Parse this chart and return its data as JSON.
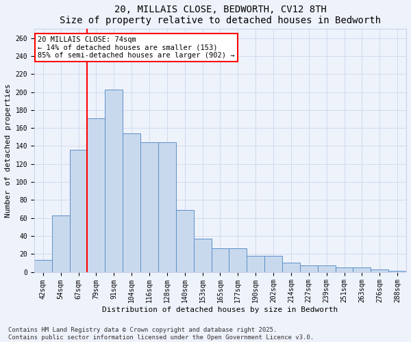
{
  "title": "20, MILLAIS CLOSE, BEDWORTH, CV12 8TH",
  "subtitle": "Size of property relative to detached houses in Bedworth",
  "xlabel": "Distribution of detached houses by size in Bedworth",
  "ylabel": "Number of detached properties",
  "categories": [
    "42sqm",
    "54sqm",
    "67sqm",
    "79sqm",
    "91sqm",
    "104sqm",
    "116sqm",
    "128sqm",
    "140sqm",
    "153sqm",
    "165sqm",
    "177sqm",
    "190sqm",
    "202sqm",
    "214sqm",
    "227sqm",
    "239sqm",
    "251sqm",
    "263sqm",
    "276sqm",
    "288sqm"
  ],
  "values": [
    13,
    63,
    136,
    171,
    203,
    154,
    144,
    144,
    69,
    37,
    26,
    26,
    18,
    18,
    10,
    7,
    7,
    5,
    5,
    3,
    1
  ],
  "bar_color": "#c9d9ed",
  "bar_edge_color": "#5b8fc9",
  "property_line_color": "red",
  "annotation_line1": "20 MILLAIS CLOSE: 74sqm",
  "annotation_line2": "← 14% of detached houses are smaller (153)",
  "annotation_line3": "85% of semi-detached houses are larger (902) →",
  "annotation_box_color": "white",
  "annotation_box_edge_color": "red",
  "ylim": [
    0,
    270
  ],
  "yticks": [
    0,
    20,
    40,
    60,
    80,
    100,
    120,
    140,
    160,
    180,
    200,
    220,
    240,
    260
  ],
  "footnote": "Contains HM Land Registry data © Crown copyright and database right 2025.\nContains public sector information licensed under the Open Government Licence v3.0.",
  "bg_color": "#eef2fb",
  "grid_color": "#c8d0e8",
  "title_fontsize": 10,
  "subtitle_fontsize": 9,
  "axis_label_fontsize": 8,
  "tick_fontsize": 7,
  "annotation_fontsize": 7.5,
  "footnote_fontsize": 6.5
}
